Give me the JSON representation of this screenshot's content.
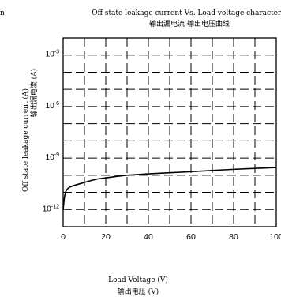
{
  "page_fragment": "n",
  "chart_data": {
    "type": "line",
    "title": "Off state leakage current Vs. Load voltage characteris",
    "subtitle": "输出漏电流-输出电压曲线",
    "xlabel": "Load Voltage (V)",
    "xlabel_cn": "输出电压 (V)",
    "ylabel": "Off state leakage current (A)",
    "ylabel_cn": "输出漏电流 (A)",
    "xlim": [
      0,
      100
    ],
    "ylim": [
      1e-13,
      0.01
    ],
    "yscale": "log",
    "grid": true,
    "xticks": [
      0,
      20,
      40,
      60,
      80,
      100
    ],
    "xtick_labels": [
      "0",
      "20",
      "40",
      "60",
      "80",
      "100"
    ],
    "yticks": [
      1e-12,
      1e-09,
      1e-06,
      0.001
    ],
    "ytick_labels": [
      {
        "base": "10",
        "exp": "-12"
      },
      {
        "base": "10",
        "exp": "-9"
      },
      {
        "base": "10",
        "exp": "-6"
      },
      {
        "base": "10",
        "exp": "-3"
      }
    ],
    "series": [
      {
        "x": [
          0,
          0.5,
          1,
          2,
          3,
          5,
          8,
          12,
          16,
          20,
          25,
          30,
          35,
          40,
          50,
          60,
          70,
          80,
          90,
          100
        ],
        "y": [
          1e-12,
          4e-12,
          1e-11,
          1.6e-11,
          2e-11,
          2.5e-11,
          3.2e-11,
          4.5e-11,
          6e-11,
          7e-11,
          8.5e-11,
          1e-10,
          1.1e-10,
          1.2e-10,
          1.4e-10,
          1.6e-10,
          1.9e-10,
          2.2e-10,
          2.5e-10,
          2.8e-10
        ]
      }
    ]
  }
}
